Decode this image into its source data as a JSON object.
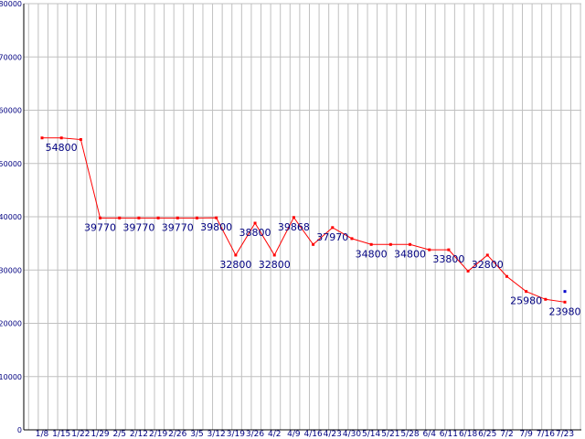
{
  "chart_data": {
    "type": "line",
    "title": "",
    "xlabel": "",
    "ylabel": "",
    "ylim": [
      0,
      80000
    ],
    "yticks": [
      0,
      10000,
      20000,
      30000,
      40000,
      50000,
      60000,
      70000,
      80000
    ],
    "grid": true,
    "legend": "none",
    "colors": {
      "line": "#ff0000",
      "point": "#ff0000",
      "extra_point": "#0000cc",
      "grid": "#c0c0c0",
      "axis": "#000000",
      "text": "#000080"
    },
    "x": [
      "1/8",
      "1/15",
      "1/22",
      "1/29",
      "2/5",
      "2/12",
      "2/19",
      "2/26",
      "3/5",
      "3/12",
      "3/19",
      "3/26",
      "4/2",
      "4/9",
      "4/16",
      "4/23",
      "4/30",
      "5/14",
      "5/21",
      "5/28",
      "6/4",
      "6/11",
      "6/18",
      "6/25",
      "7/2",
      "7/9",
      "7/16",
      "7/23"
    ],
    "values": [
      54800,
      54800,
      54500,
      39770,
      39770,
      39770,
      39770,
      39770,
      39770,
      39800,
      32800,
      38800,
      32800,
      39868,
      34800,
      37970,
      35900,
      34800,
      34800,
      34800,
      33800,
      33800,
      29800,
      32800,
      28800,
      25980,
      24500,
      23980
    ],
    "data_labels": [
      {
        "index": 1,
        "text": "54800"
      },
      {
        "index": 3,
        "text": "39770"
      },
      {
        "index": 5,
        "text": "39770"
      },
      {
        "index": 7,
        "text": "39770"
      },
      {
        "index": 9,
        "text": "39800"
      },
      {
        "index": 10,
        "text": "32800"
      },
      {
        "index": 11,
        "text": "38800"
      },
      {
        "index": 12,
        "text": "32800"
      },
      {
        "index": 13,
        "text": "39868"
      },
      {
        "index": 15,
        "text": "37970"
      },
      {
        "index": 17,
        "text": "34800"
      },
      {
        "index": 19,
        "text": "34800"
      },
      {
        "index": 21,
        "text": "33800"
      },
      {
        "index": 23,
        "text": "32800"
      },
      {
        "index": 25,
        "text": "25980"
      },
      {
        "index": 27,
        "text": "23980"
      }
    ],
    "extra_point": {
      "index": 27,
      "value": 25980
    }
  }
}
